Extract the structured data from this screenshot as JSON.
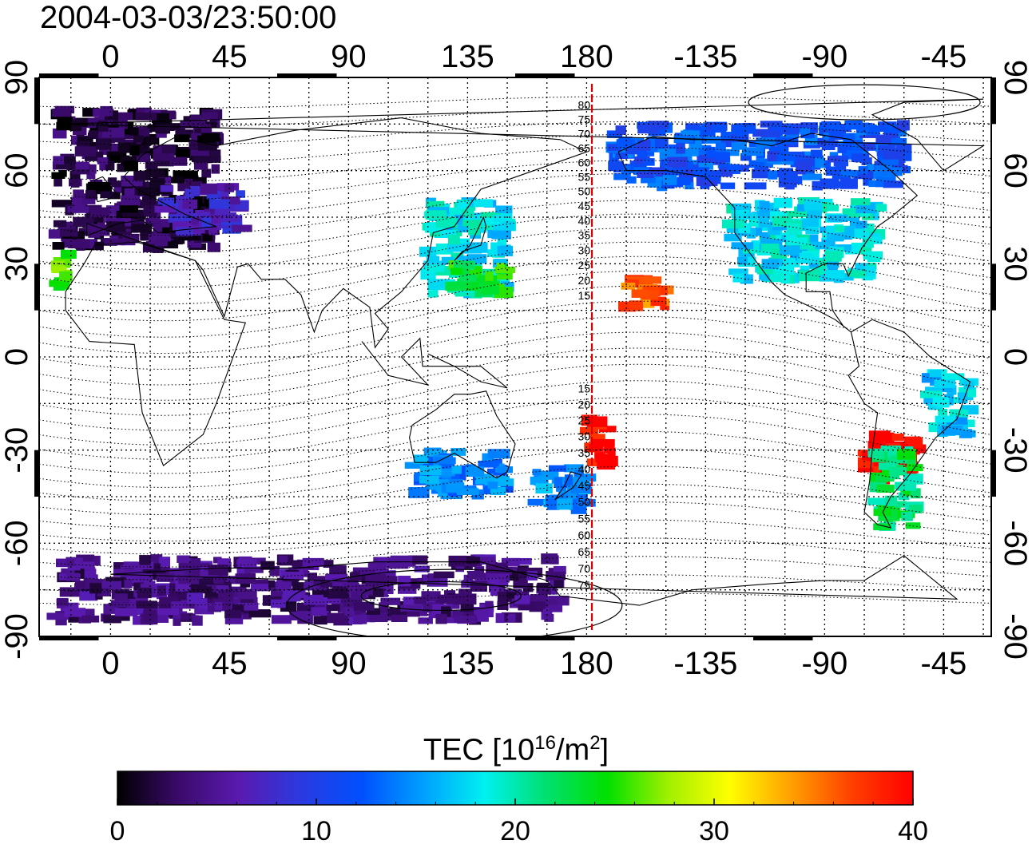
{
  "title": "2004-03-03/23:50:00",
  "map": {
    "lon_ticks": [
      0,
      45,
      90,
      135,
      180,
      -135,
      -90,
      -45
    ],
    "lat_ticks": [
      90,
      60,
      30,
      0,
      -30,
      -60,
      -90
    ],
    "meridian_line_color": "#e00000",
    "magnetic_latitude_labels": [
      "80",
      "75",
      "70",
      "65",
      "60",
      "55",
      "50",
      "45",
      "40",
      "35",
      "30",
      "25",
      "20",
      "15",
      "15",
      "20",
      "25",
      "30",
      "35",
      "40",
      "45",
      "50",
      "55",
      "60",
      "65",
      "70",
      "75"
    ]
  },
  "colorbar": {
    "label_main": "TEC  [10",
    "label_exp1": "16",
    "label_mid": "/m",
    "label_exp2": "2",
    "label_end": "]",
    "min": 0,
    "max": 40,
    "ticks": [
      "0",
      "10",
      "20",
      "30",
      "40"
    ],
    "stops": [
      "#000000",
      "#3a0a6a",
      "#5a1ab0",
      "#2a3ae0",
      "#0050ff",
      "#00a0ff",
      "#00f0f0",
      "#00e070",
      "#00e000",
      "#a0f000",
      "#ffff00",
      "#ffa000",
      "#ff4000",
      "#ff0000"
    ]
  },
  "chart_data": {
    "type": "heatmap",
    "title": "2004-03-03/23:50:00",
    "value_label": "TEC [10^16/m^2]",
    "value_range": [
      0,
      40
    ],
    "x_axis": "longitude",
    "y_axis": "latitude",
    "xlim": [
      -27,
      333
    ],
    "ylim": [
      -90,
      90
    ],
    "regions": [
      {
        "lon": [
          -20,
          40
        ],
        "lat": [
          35,
          80
        ],
        "tec": 2
      },
      {
        "lon": [
          20,
          50
        ],
        "lat": [
          40,
          55
        ],
        "tec": 7
      },
      {
        "lon": [
          -20,
          -15
        ],
        "lat": [
          20,
          35
        ],
        "tec": 26
      },
      {
        "lon": [
          120,
          150
        ],
        "lat": [
          20,
          50
        ],
        "tec": 18
      },
      {
        "lon": [
          130,
          150
        ],
        "lat": [
          20,
          30
        ],
        "tec": 24
      },
      {
        "lon": [
          195,
          210
        ],
        "lat": [
          15,
          25
        ],
        "tec": 36
      },
      {
        "lon": [
          180,
          190
        ],
        "lat": [
          -35,
          -20
        ],
        "tec": 40
      },
      {
        "lon": [
          160,
          180
        ],
        "lat": [
          -50,
          -35
        ],
        "tec": 15
      },
      {
        "lon": [
          115,
          150
        ],
        "lat": [
          -45,
          -30
        ],
        "tec": 14
      },
      {
        "lon": [
          -125,
          -70
        ],
        "lat": [
          25,
          50
        ],
        "tec": 18
      },
      {
        "lon": [
          -170,
          -60
        ],
        "lat": [
          55,
          75
        ],
        "tec": 12
      },
      {
        "lon": [
          -75,
          -55
        ],
        "lat": [
          -40,
          -25
        ],
        "tec": 40
      },
      {
        "lon": [
          -70,
          -55
        ],
        "lat": [
          -55,
          -30
        ],
        "tec": 22
      },
      {
        "lon": [
          -50,
          -35
        ],
        "lat": [
          -25,
          -5
        ],
        "tec": 17
      },
      {
        "lon": [
          -20,
          170
        ],
        "lat": [
          -85,
          -65
        ],
        "tec": 4
      }
    ]
  }
}
